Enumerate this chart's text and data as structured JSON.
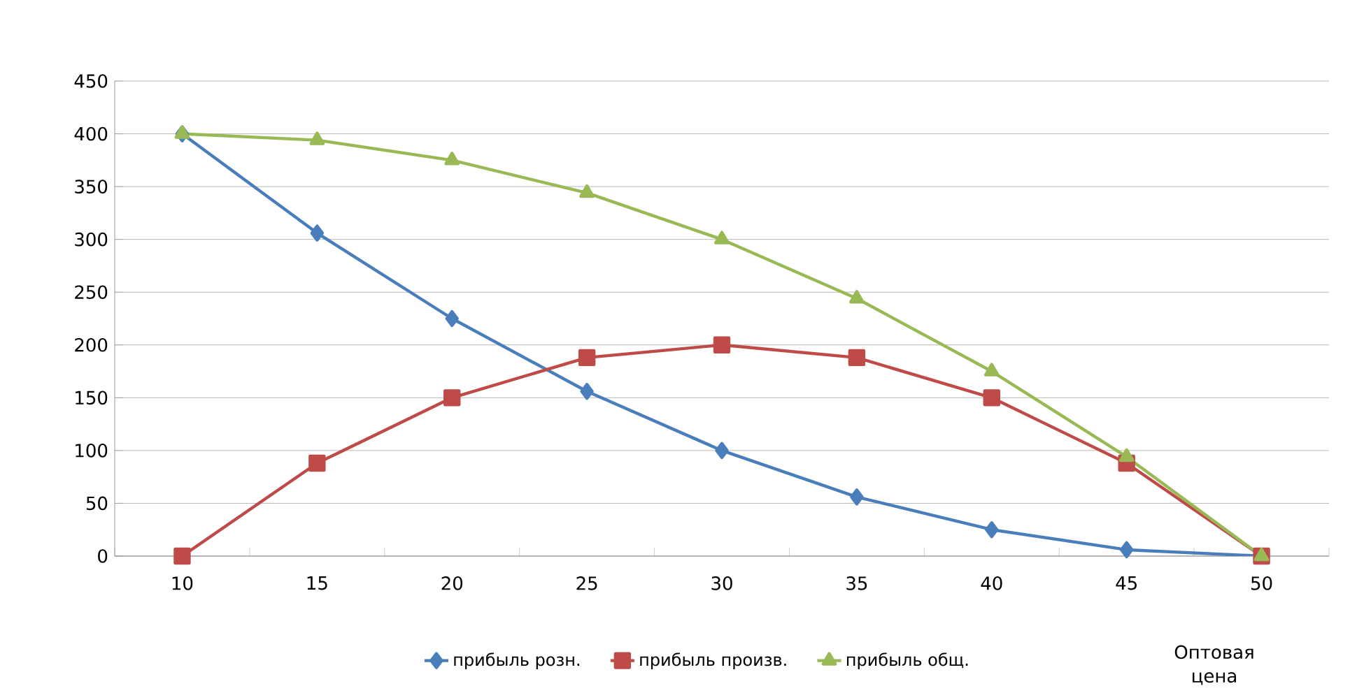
{
  "chart_data": {
    "type": "line",
    "xlabel": "Оптовая цена",
    "categories": [
      "10",
      "15",
      "20",
      "25",
      "30",
      "35",
      "40",
      "45",
      "50"
    ],
    "series": [
      {
        "name": "прибыль розн.",
        "color": "#4a7ebb",
        "marker": "diamond",
        "values": [
          400,
          306,
          225,
          156,
          100,
          56,
          25,
          6,
          0
        ]
      },
      {
        "name": "прибыль произв.",
        "color": "#be4b48",
        "marker": "square",
        "values": [
          0,
          88,
          150,
          188,
          200,
          188,
          150,
          88,
          0
        ]
      },
      {
        "name": "прибыль общ.",
        "color": "#98b954",
        "marker": "triangle",
        "values": [
          400,
          394,
          375,
          344,
          300,
          244,
          175,
          94,
          0
        ]
      }
    ],
    "ylim": [
      0,
      450
    ],
    "yticks": [
      0,
      50,
      100,
      150,
      200,
      250,
      300,
      350,
      400,
      450
    ],
    "grid": "y",
    "legend": "bottom",
    "line_style": "solid"
  }
}
